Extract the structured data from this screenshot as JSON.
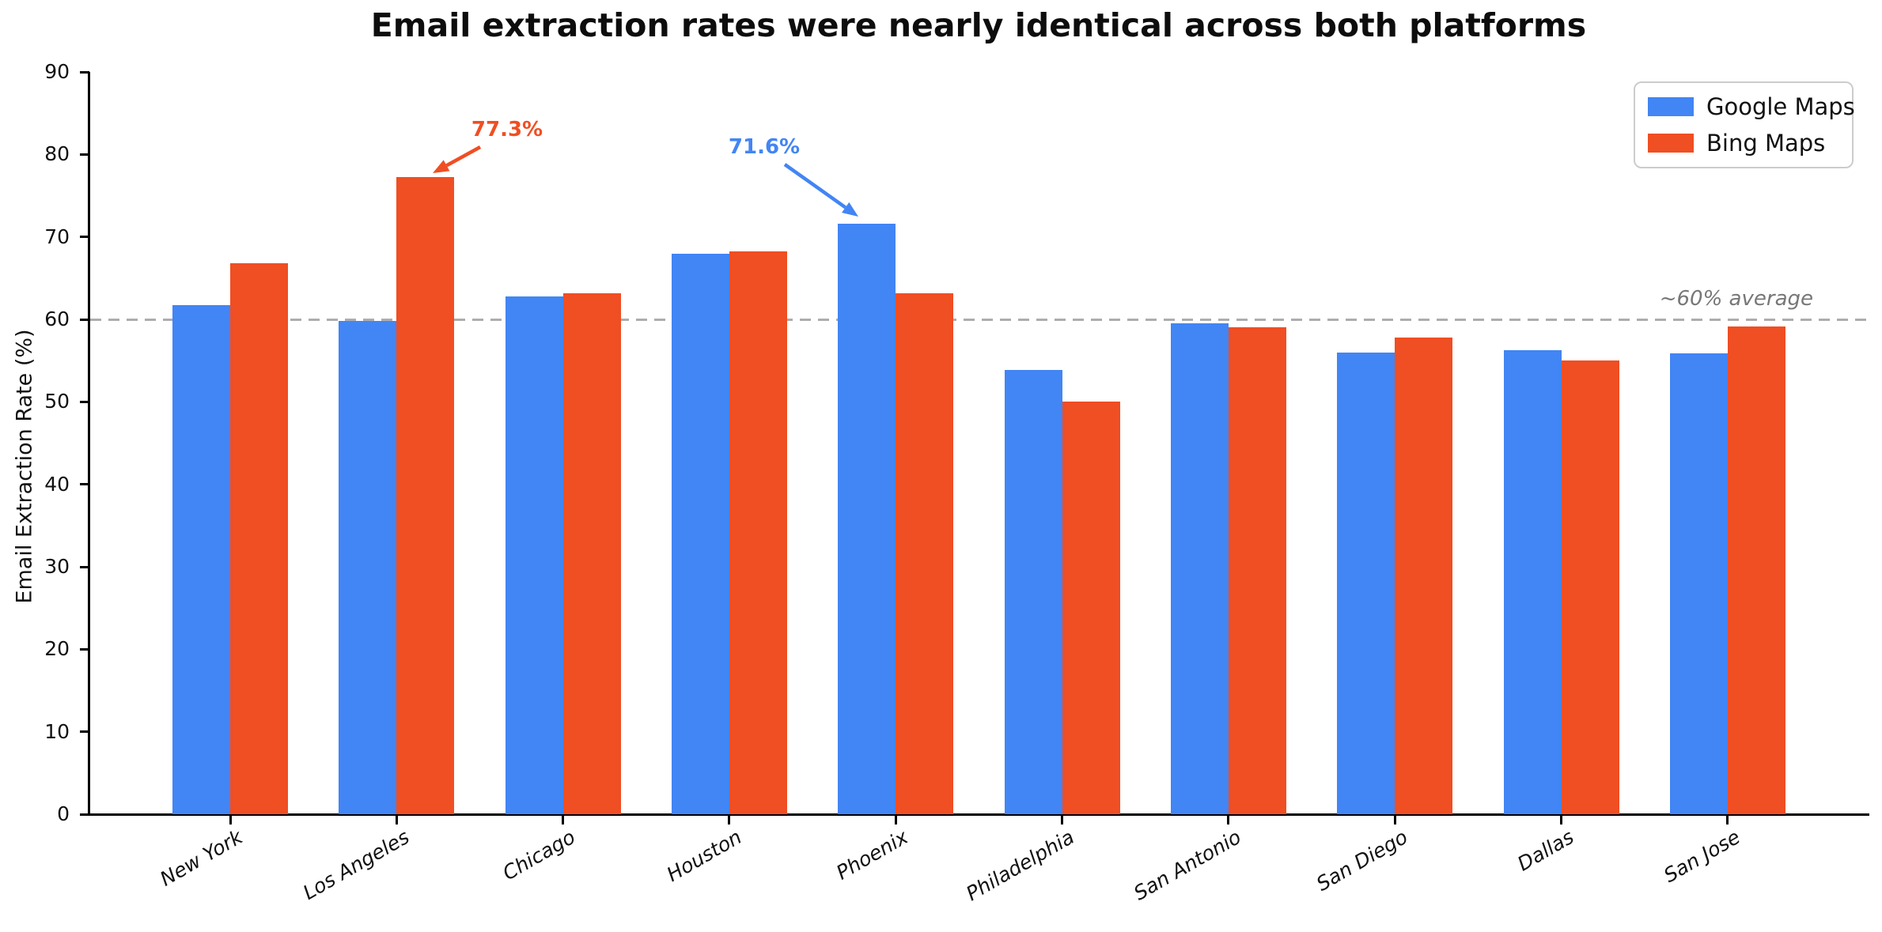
{
  "chart_data": {
    "type": "bar",
    "title": "Email extraction rates were nearly identical across both platforms",
    "xlabel": "",
    "ylabel": "Email Extraction Rate (%)",
    "categories": [
      "New York",
      "Los Angeles",
      "Chicago",
      "Houston",
      "Phoenix",
      "Philadelphia",
      "San Antonio",
      "San Diego",
      "Dallas",
      "San Jose"
    ],
    "series": [
      {
        "name": "Google Maps",
        "color": "#4285F4",
        "values": [
          61.7,
          59.8,
          62.8,
          68.0,
          71.6,
          53.9,
          59.5,
          56.0,
          56.3,
          55.9
        ]
      },
      {
        "name": "Bing Maps",
        "color": "#F04E23",
        "values": [
          66.8,
          77.3,
          63.2,
          68.2,
          63.2,
          50.0,
          59.0,
          57.8,
          55.0,
          59.1
        ]
      }
    ],
    "ylim": [
      0,
      90
    ],
    "yticks": [
      0,
      10,
      20,
      30,
      40,
      50,
      60,
      70,
      80,
      90
    ],
    "grid": false,
    "legend_position": "upper right",
    "reference_line": {
      "value": 60,
      "label": "~60% average",
      "style": "dashed",
      "color": "#ADADAD"
    },
    "annotations": [
      {
        "label": "77.3%",
        "series": "Bing Maps",
        "category": "Los Angeles",
        "color": "#F04E23"
      },
      {
        "label": "71.6%",
        "series": "Google Maps",
        "category": "Phoenix",
        "color": "#4285F4"
      }
    ]
  }
}
